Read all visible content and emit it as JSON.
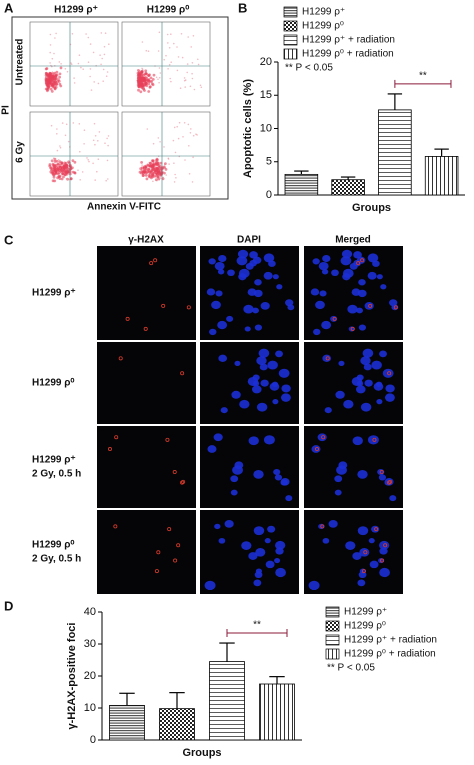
{
  "panel_a": {
    "label": "A",
    "columns": [
      "H1299 ρ⁺",
      "H1299 ρ⁰"
    ],
    "rows": [
      "Untreated",
      "6 Gy"
    ],
    "y_label": "PI",
    "x_label": "Annexin V-FITC"
  },
  "panel_b": {
    "label": "B"
  },
  "panel_c": {
    "label": "C",
    "columns": [
      "γ-H2AX",
      "DAPI",
      "Merged"
    ],
    "rows": [
      [
        "H1299 ρ⁺"
      ],
      [
        "H1299 ρ⁰"
      ],
      [
        "H1299 ρ⁺",
        "2 Gy, 0.5 h"
      ],
      [
        "H1299 ρ⁰",
        "2 Gy, 0.5 h"
      ]
    ]
  },
  "panel_d": {
    "label": "D"
  },
  "chart_data": [
    {
      "type": "bar",
      "y_label": "Apoptotic cells (%)",
      "x_label": "Groups",
      "categories": [
        null
      ],
      "series": [
        {
          "name": "H1299 ρ⁺",
          "values": [
            3.1
          ],
          "errors": [
            0.5
          ]
        },
        {
          "name": "H1299 ρ⁰",
          "values": [
            2.3
          ],
          "errors": [
            0.4
          ]
        },
        {
          "name": "H1299 ρ⁺ + radiation",
          "values": [
            12.8
          ],
          "errors": [
            2.4
          ]
        },
        {
          "name": "H1299 ρ⁰ + radiation",
          "values": [
            5.8
          ],
          "errors": [
            1.1
          ]
        }
      ],
      "ylim": [
        0,
        20
      ],
      "yticks": [
        0,
        5,
        10,
        15,
        20
      ],
      "significance": {
        "between": [
          2,
          3
        ],
        "label": "**"
      },
      "legend_note": "**  P < 0.05"
    },
    {
      "type": "bar",
      "y_label": "γ-H2AX-positive foci",
      "x_label": "Groups",
      "categories": [
        null
      ],
      "series": [
        {
          "name": "H1299 ρ⁺",
          "values": [
            10.8
          ],
          "errors": [
            3.8
          ]
        },
        {
          "name": "H1299 ρ⁰",
          "values": [
            9.8
          ],
          "errors": [
            5.0
          ]
        },
        {
          "name": "H1299 ρ⁺ + radiation",
          "values": [
            24.5
          ],
          "errors": [
            5.8
          ]
        },
        {
          "name": "H1299 ρ⁰ + radiation",
          "values": [
            17.5
          ],
          "errors": [
            2.3
          ]
        }
      ],
      "ylim": [
        0,
        40
      ],
      "yticks": [
        0,
        10,
        20,
        30,
        40
      ],
      "significance": {
        "between": [
          2,
          3
        ],
        "label": "**"
      },
      "legend_note": "**  P < 0.05"
    }
  ]
}
